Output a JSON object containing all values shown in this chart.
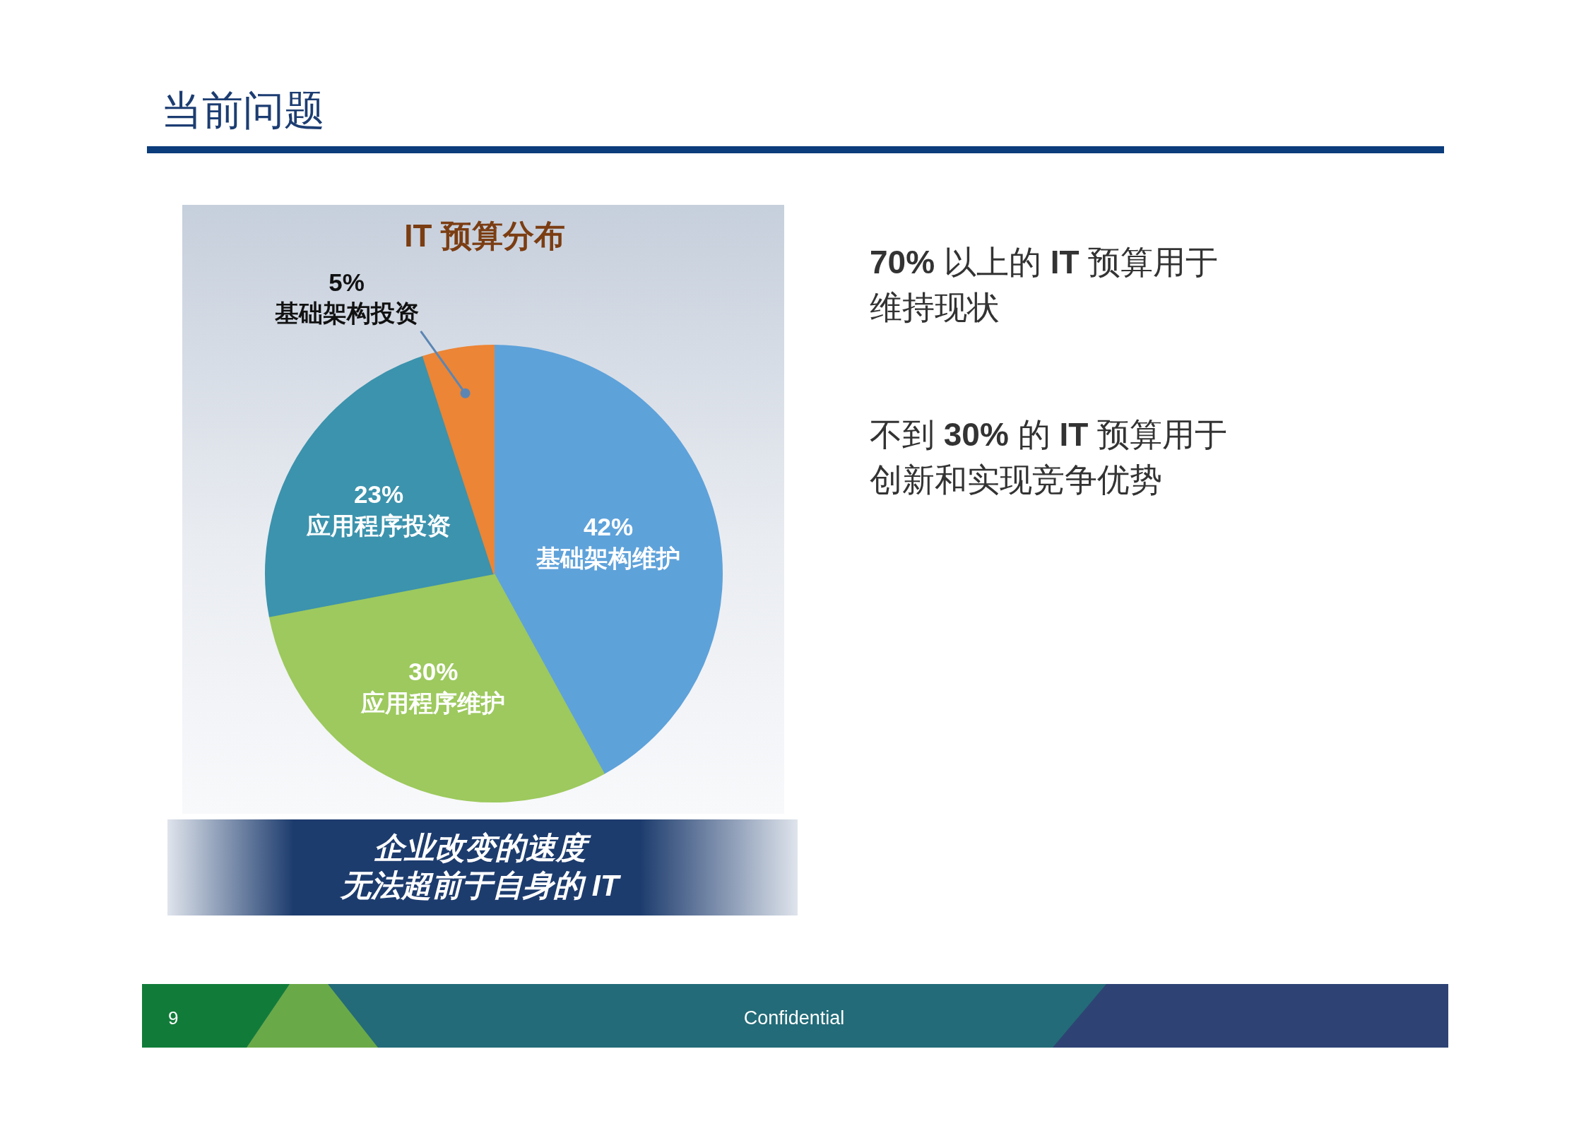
{
  "chart_data": {
    "type": "pie",
    "title": "IT 预算分布",
    "categories": [
      "基础架构维护",
      "应用程序维护",
      "应用程序投资",
      "基础架构投资"
    ],
    "values": [
      42,
      30,
      23,
      5
    ],
    "value_labels": [
      "42%",
      "30%",
      "23%",
      "5%"
    ],
    "colors": [
      "#5ea2da",
      "#9dc95e",
      "#3c93ad",
      "#ec8535"
    ],
    "annotations": [
      "当前问题",
      "**70%** 以上的 **IT** 预算用于维持现状",
      "不到 **30%** 的 **IT** 预算用于创新和实现竞争优势",
      "企业改变的速度",
      "无法超前于自身的 IT",
      "9",
      "Confidential"
    ]
  }
}
